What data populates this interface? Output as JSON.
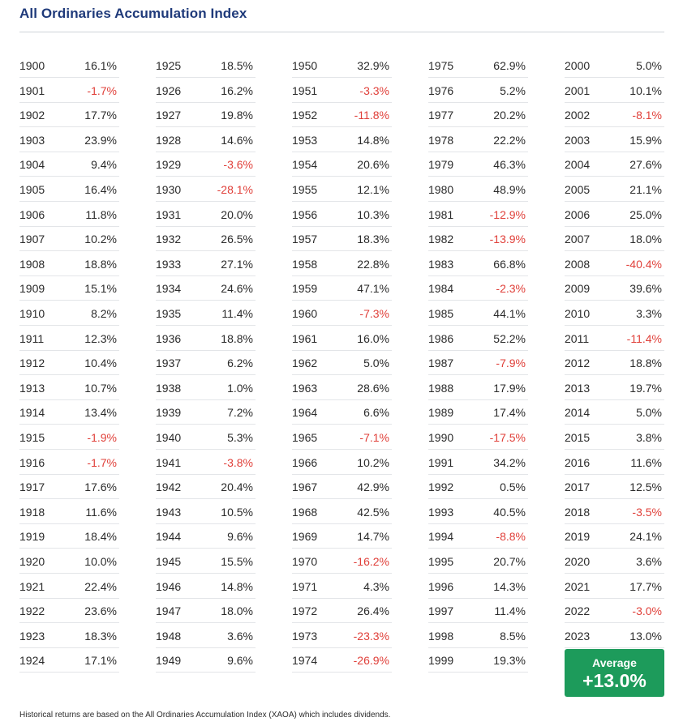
{
  "title": "All Ordinaries Accumulation Index",
  "average": {
    "label": "Average",
    "value": "+13.0%"
  },
  "footnote": "Historical returns are based on the All Ordinaries Accumulation Index (XAOA) which includes dividends.",
  "colors": {
    "title": "#1f3a7a",
    "negative": "#e0403a",
    "average_box": "#1d9b5b"
  },
  "chart_data": {
    "type": "table",
    "title": "All Ordinaries Accumulation Index",
    "columns": [
      [
        {
          "year": "1900",
          "value": "16.1%"
        },
        {
          "year": "1901",
          "value": "-1.7%"
        },
        {
          "year": "1902",
          "value": "17.7%"
        },
        {
          "year": "1903",
          "value": "23.9%"
        },
        {
          "year": "1904",
          "value": "9.4%"
        },
        {
          "year": "1905",
          "value": "16.4%"
        },
        {
          "year": "1906",
          "value": "11.8%"
        },
        {
          "year": "1907",
          "value": "10.2%"
        },
        {
          "year": "1908",
          "value": "18.8%"
        },
        {
          "year": "1909",
          "value": "15.1%"
        },
        {
          "year": "1910",
          "value": "8.2%"
        },
        {
          "year": "1911",
          "value": "12.3%"
        },
        {
          "year": "1912",
          "value": "10.4%"
        },
        {
          "year": "1913",
          "value": "10.7%"
        },
        {
          "year": "1914",
          "value": "13.4%"
        },
        {
          "year": "1915",
          "value": "-1.9%"
        },
        {
          "year": "1916",
          "value": "-1.7%"
        },
        {
          "year": "1917",
          "value": "17.6%"
        },
        {
          "year": "1918",
          "value": "11.6%"
        },
        {
          "year": "1919",
          "value": "18.4%"
        },
        {
          "year": "1920",
          "value": "10.0%"
        },
        {
          "year": "1921",
          "value": "22.4%"
        },
        {
          "year": "1922",
          "value": "23.6%"
        },
        {
          "year": "1923",
          "value": "18.3%"
        },
        {
          "year": "1924",
          "value": "17.1%"
        }
      ],
      [
        {
          "year": "1925",
          "value": "18.5%"
        },
        {
          "year": "1926",
          "value": "16.2%"
        },
        {
          "year": "1927",
          "value": "19.8%"
        },
        {
          "year": "1928",
          "value": "14.6%"
        },
        {
          "year": "1929",
          "value": "-3.6%"
        },
        {
          "year": "1930",
          "value": "-28.1%"
        },
        {
          "year": "1931",
          "value": "20.0%"
        },
        {
          "year": "1932",
          "value": "26.5%"
        },
        {
          "year": "1933",
          "value": "27.1%"
        },
        {
          "year": "1934",
          "value": "24.6%"
        },
        {
          "year": "1935",
          "value": "11.4%"
        },
        {
          "year": "1936",
          "value": "18.8%"
        },
        {
          "year": "1937",
          "value": "6.2%"
        },
        {
          "year": "1938",
          "value": "1.0%"
        },
        {
          "year": "1939",
          "value": "7.2%"
        },
        {
          "year": "1940",
          "value": "5.3%"
        },
        {
          "year": "1941",
          "value": "-3.8%"
        },
        {
          "year": "1942",
          "value": "20.4%"
        },
        {
          "year": "1943",
          "value": "10.5%"
        },
        {
          "year": "1944",
          "value": "9.6%"
        },
        {
          "year": "1945",
          "value": "15.5%"
        },
        {
          "year": "1946",
          "value": "14.8%"
        },
        {
          "year": "1947",
          "value": "18.0%"
        },
        {
          "year": "1948",
          "value": "3.6%"
        },
        {
          "year": "1949",
          "value": "9.6%"
        }
      ],
      [
        {
          "year": "1950",
          "value": "32.9%"
        },
        {
          "year": "1951",
          "value": "-3.3%"
        },
        {
          "year": "1952",
          "value": "-11.8%"
        },
        {
          "year": "1953",
          "value": "14.8%"
        },
        {
          "year": "1954",
          "value": "20.6%"
        },
        {
          "year": "1955",
          "value": "12.1%"
        },
        {
          "year": "1956",
          "value": "10.3%"
        },
        {
          "year": "1957",
          "value": "18.3%"
        },
        {
          "year": "1958",
          "value": "22.8%"
        },
        {
          "year": "1959",
          "value": "47.1%"
        },
        {
          "year": "1960",
          "value": "-7.3%"
        },
        {
          "year": "1961",
          "value": "16.0%"
        },
        {
          "year": "1962",
          "value": "5.0%"
        },
        {
          "year": "1963",
          "value": "28.6%"
        },
        {
          "year": "1964",
          "value": "6.6%"
        },
        {
          "year": "1965",
          "value": "-7.1%"
        },
        {
          "year": "1966",
          "value": "10.2%"
        },
        {
          "year": "1967",
          "value": "42.9%"
        },
        {
          "year": "1968",
          "value": "42.5%"
        },
        {
          "year": "1969",
          "value": "14.7%"
        },
        {
          "year": "1970",
          "value": "-16.2%"
        },
        {
          "year": "1971",
          "value": "4.3%"
        },
        {
          "year": "1972",
          "value": "26.4%"
        },
        {
          "year": "1973",
          "value": "-23.3%"
        },
        {
          "year": "1974",
          "value": "-26.9%"
        }
      ],
      [
        {
          "year": "1975",
          "value": "62.9%"
        },
        {
          "year": "1976",
          "value": "5.2%"
        },
        {
          "year": "1977",
          "value": "20.2%"
        },
        {
          "year": "1978",
          "value": "22.2%"
        },
        {
          "year": "1979",
          "value": "46.3%"
        },
        {
          "year": "1980",
          "value": "48.9%"
        },
        {
          "year": "1981",
          "value": "-12.9%"
        },
        {
          "year": "1982",
          "value": "-13.9%"
        },
        {
          "year": "1983",
          "value": "66.8%"
        },
        {
          "year": "1984",
          "value": "-2.3%"
        },
        {
          "year": "1985",
          "value": "44.1%"
        },
        {
          "year": "1986",
          "value": "52.2%"
        },
        {
          "year": "1987",
          "value": "-7.9%"
        },
        {
          "year": "1988",
          "value": "17.9%"
        },
        {
          "year": "1989",
          "value": "17.4%"
        },
        {
          "year": "1990",
          "value": "-17.5%"
        },
        {
          "year": "1991",
          "value": "34.2%"
        },
        {
          "year": "1992",
          "value": "0.5%"
        },
        {
          "year": "1993",
          "value": "40.5%"
        },
        {
          "year": "1994",
          "value": "-8.8%"
        },
        {
          "year": "1995",
          "value": "20.7%"
        },
        {
          "year": "1996",
          "value": "14.3%"
        },
        {
          "year": "1997",
          "value": "11.4%"
        },
        {
          "year": "1998",
          "value": "8.5%"
        },
        {
          "year": "1999",
          "value": "19.3%"
        }
      ],
      [
        {
          "year": "2000",
          "value": "5.0%"
        },
        {
          "year": "2001",
          "value": "10.1%"
        },
        {
          "year": "2002",
          "value": "-8.1%"
        },
        {
          "year": "2003",
          "value": "15.9%"
        },
        {
          "year": "2004",
          "value": "27.6%"
        },
        {
          "year": "2005",
          "value": "21.1%"
        },
        {
          "year": "2006",
          "value": "25.0%"
        },
        {
          "year": "2007",
          "value": "18.0%"
        },
        {
          "year": "2008",
          "value": "-40.4%"
        },
        {
          "year": "2009",
          "value": "39.6%"
        },
        {
          "year": "2010",
          "value": "3.3%"
        },
        {
          "year": "2011",
          "value": "-11.4%"
        },
        {
          "year": "2012",
          "value": "18.8%"
        },
        {
          "year": "2013",
          "value": "19.7%"
        },
        {
          "year": "2014",
          "value": "5.0%"
        },
        {
          "year": "2015",
          "value": "3.8%"
        },
        {
          "year": "2016",
          "value": "11.6%"
        },
        {
          "year": "2017",
          "value": "12.5%"
        },
        {
          "year": "2018",
          "value": "-3.5%"
        },
        {
          "year": "2019",
          "value": "24.1%"
        },
        {
          "year": "2020",
          "value": "3.6%"
        },
        {
          "year": "2021",
          "value": "17.7%"
        },
        {
          "year": "2022",
          "value": "-3.0%"
        },
        {
          "year": "2023",
          "value": "13.0%"
        }
      ]
    ]
  }
}
